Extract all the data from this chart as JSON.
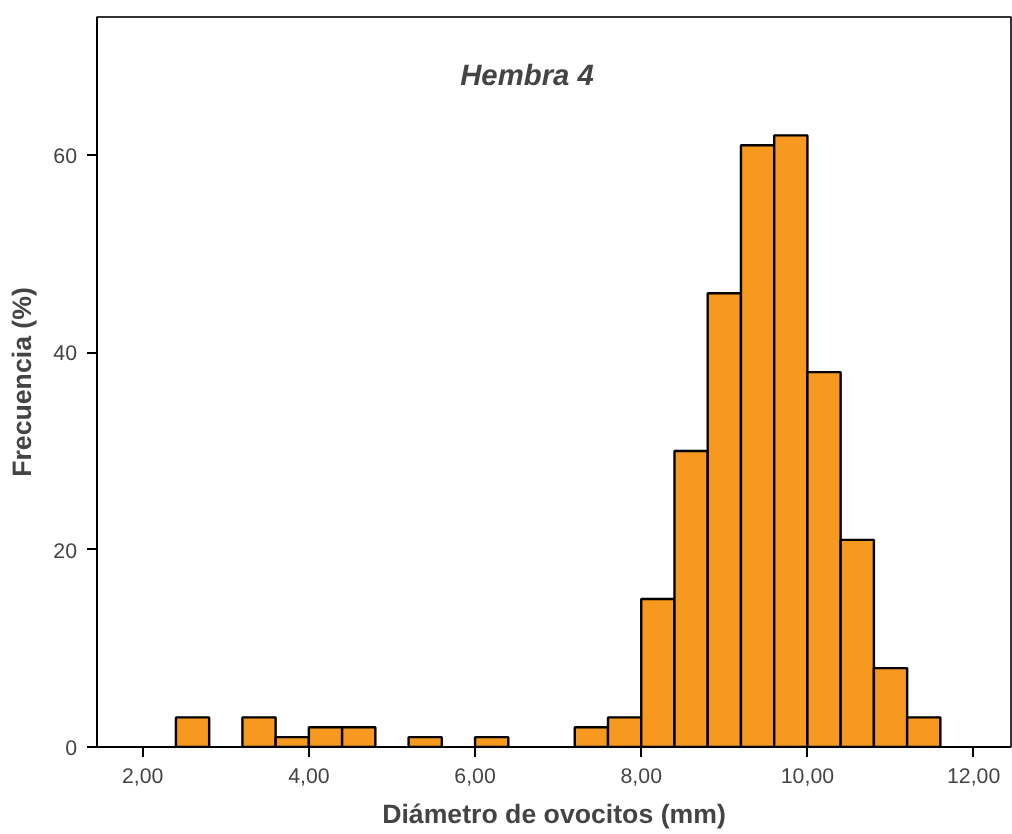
{
  "chart_data": {
    "type": "histogram",
    "title": "Hembra 4",
    "xlabel": "Diámetro de ovocitos (mm)",
    "ylabel": "Frecuencia (%)",
    "bins": [
      2.4,
      2.8,
      3.2,
      3.6,
      4.0,
      4.4,
      4.8,
      5.2,
      5.6,
      6.0,
      6.4,
      6.8,
      7.2,
      7.6,
      8.0,
      8.4,
      8.8,
      9.2,
      9.6,
      10.0,
      10.4,
      10.8,
      11.2,
      11.6
    ],
    "values": [
      3,
      0,
      3,
      1,
      2,
      2,
      0,
      1,
      0,
      1,
      0,
      0,
      2,
      3,
      15,
      30,
      46,
      61,
      62,
      38,
      21,
      8,
      3
    ],
    "color": "#f7991f",
    "xlim": [
      1.45,
      12.45
    ],
    "ylim": [
      0,
      74
    ],
    "xticks": [
      {
        "value": 2,
        "label": "2,00"
      },
      {
        "value": 4,
        "label": "4,00"
      },
      {
        "value": 6,
        "label": "6,00"
      },
      {
        "value": 8,
        "label": "8,00"
      },
      {
        "value": 10,
        "label": "10,00"
      },
      {
        "value": 12,
        "label": "12,00"
      }
    ],
    "yticks": [
      0,
      20,
      40,
      60
    ],
    "grid": false
  }
}
